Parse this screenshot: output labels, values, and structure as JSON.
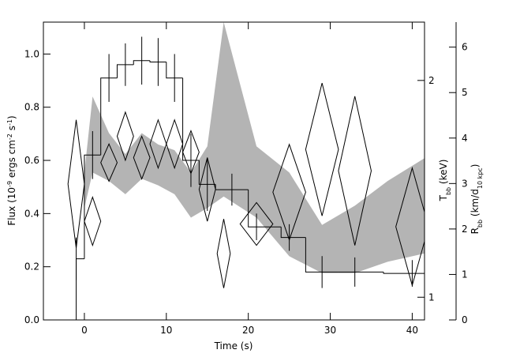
{
  "chart_data": {
    "type": "line",
    "xlabel": "Time (s)",
    "ylabel": [
      "Flux (10",
      "-9",
      " ergs cm",
      "-2",
      " s",
      "-1",
      ")"
    ],
    "y2label": [
      "T",
      "bb",
      " (keV)"
    ],
    "y3label": [
      "R",
      "bb",
      " (km/d",
      "10 kpc",
      ")"
    ],
    "xlim": [
      -5,
      41.5
    ],
    "xticks": [
      0,
      10,
      20,
      30,
      40
    ],
    "ylim": [
      0,
      1.12
    ],
    "yticks": [
      {
        "value": 0,
        "label": "0.0"
      },
      0.2,
      0.4,
      0.6,
      0.8,
      {
        "value": 1,
        "label": "1.0"
      }
    ],
    "y2lim": [
      0.93,
      2.41
    ],
    "y2scale": "log",
    "y2ticks": [
      1,
      2
    ],
    "y3lim": [
      0,
      6.55
    ],
    "y3ticks": [
      0,
      1,
      2,
      3,
      4,
      5,
      6
    ],
    "series": [
      {
        "type": "band",
        "axis": "y2",
        "color": "#b4b4b4",
        "x": [
          0,
          1,
          3,
          5,
          7,
          9,
          11,
          13,
          15,
          17,
          21,
          25,
          29,
          33,
          37,
          41.5
        ],
        "upper": [
          1.49,
          1.9,
          1.69,
          1.58,
          1.69,
          1.63,
          1.6,
          1.49,
          1.62,
          2.41,
          1.62,
          1.49,
          1.26,
          1.34,
          1.45,
          1.56
        ],
        "lower": [
          1.33,
          1.49,
          1.45,
          1.39,
          1.46,
          1.43,
          1.39,
          1.29,
          1.33,
          1.38,
          1.29,
          1.14,
          1.08,
          1.08,
          1.12,
          1.15
        ]
      },
      {
        "type": "step",
        "axis": "y",
        "color": "#000000",
        "bins": [
          -1,
          0,
          2,
          4,
          6,
          8,
          10,
          12,
          14,
          16,
          20,
          24,
          27,
          31,
          36.5,
          41.5
        ],
        "values": [
          0.23,
          0.62,
          0.91,
          0.96,
          0.975,
          0.97,
          0.91,
          0.6,
          0.51,
          0.49,
          0.35,
          0.31,
          0.18,
          0.18,
          0.175
        ],
        "err_x": [
          -1,
          1,
          3,
          5,
          7,
          9,
          11,
          13,
          15,
          18,
          21,
          25,
          29,
          33,
          40
        ],
        "errors": [
          0.08,
          0.09,
          0.09,
          0.08,
          0.09,
          0.09,
          0.09,
          0.1,
          0.1,
          0.06,
          0.05,
          0.05,
          0.06,
          0.055,
          0.05
        ]
      },
      {
        "type": "diamond",
        "axis": "y3",
        "color": "#000000",
        "x": [
          -1,
          1,
          3,
          5,
          7,
          9,
          11,
          13,
          15,
          17,
          21,
          25,
          29,
          33,
          40
        ],
        "xerr": [
          1,
          1,
          1,
          1,
          1,
          1,
          1,
          1,
          1,
          0.8,
          2,
          2,
          2,
          2,
          2
        ],
        "values": [
          2.99,
          2.17,
          3.46,
          4.04,
          3.57,
          3.87,
          3.87,
          3.69,
          2.87,
          1.46,
          2.11,
          2.81,
          3.75,
          3.28,
          2.05
        ],
        "errors": [
          1.41,
          0.53,
          0.41,
          0.53,
          0.47,
          0.53,
          0.53,
          0.47,
          0.7,
          0.76,
          0.47,
          1.05,
          1.46,
          1.64,
          1.29
        ]
      }
    ]
  }
}
